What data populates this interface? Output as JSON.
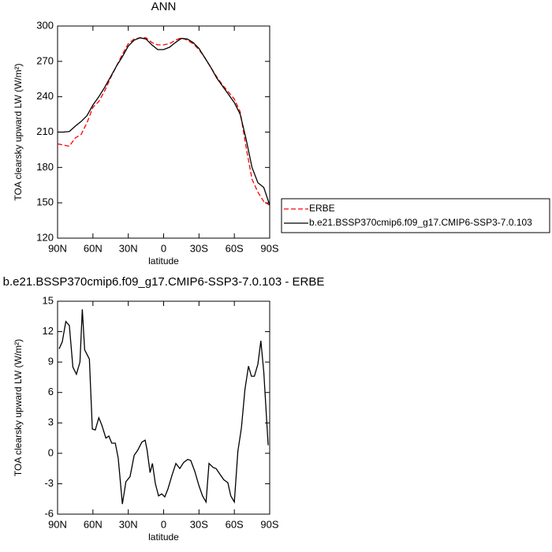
{
  "chart_data": [
    {
      "type": "line",
      "title": "ANN",
      "xlabel": "latitude",
      "ylabel": "TOA clearsky upward LW (W/m²)",
      "x": [
        90,
        85,
        80,
        75,
        70,
        65,
        60,
        55,
        50,
        45,
        40,
        35,
        30,
        25,
        20,
        15,
        10,
        5,
        0,
        -5,
        -10,
        -15,
        -20,
        -25,
        -30,
        -35,
        -40,
        -45,
        -50,
        -55,
        -60,
        -65,
        -70,
        -75,
        -80,
        -85,
        -90
      ],
      "series": [
        {
          "name": "ERBE",
          "color": "#ff0000",
          "style": "dashed",
          "values": [
            200,
            199,
            198,
            205,
            208,
            218,
            231,
            236,
            245,
            256,
            266,
            276,
            285,
            289,
            290,
            290,
            286,
            284,
            284,
            285,
            288,
            290,
            288,
            285,
            280,
            273,
            265,
            257,
            250,
            244,
            238,
            227,
            197,
            170,
            159,
            151,
            148
          ]
        },
        {
          "name": "b.e21.BSSP370cmip6.f09_g17.CMIP6-SSP3-7.0.103",
          "color": "#000000",
          "style": "solid",
          "values": [
            210,
            210,
            210.5,
            215,
            219,
            224,
            233,
            240,
            248,
            257,
            266,
            274,
            283,
            288,
            290,
            289,
            284,
            280,
            280,
            282,
            286,
            289.5,
            289,
            286,
            281,
            273,
            265,
            256,
            249,
            242,
            235,
            225,
            204,
            180,
            167,
            163,
            148
          ]
        }
      ],
      "xlim": [
        90,
        -90
      ],
      "xticks": [
        {
          "value": 90,
          "label": "90N"
        },
        {
          "value": 60,
          "label": "60N"
        },
        {
          "value": 30,
          "label": "30N"
        },
        0,
        {
          "value": -30,
          "label": "30S"
        },
        {
          "value": -60,
          "label": "60S"
        },
        {
          "value": -90,
          "label": "90S"
        }
      ],
      "ylim": [
        120,
        300
      ],
      "yticks": [
        120,
        150,
        180,
        210,
        240,
        270,
        300
      ],
      "legend": "right"
    },
    {
      "type": "line",
      "title": "b.e21.BSSP370cmip6.f09_g17.CMIP6-SSP3-7.0.103 - ERBE",
      "xlabel": "latitude",
      "ylabel": "TOA clearsky upward LW (W/m²)",
      "x": [
        88.7,
        86,
        83,
        80,
        77,
        74,
        71,
        69,
        67,
        63,
        60.5,
        58,
        55,
        52.5,
        49,
        46.5,
        44,
        41,
        38.5,
        35,
        32,
        28.5,
        25,
        22,
        18.5,
        15.7,
        14,
        11.5,
        9.5,
        7,
        4.3,
        1.6,
        -1,
        -3.7,
        -7,
        -10.4,
        -13.7,
        -17,
        -20.4,
        -23,
        -26.5,
        -30,
        -33,
        -36,
        -38.5,
        -42,
        -44.5,
        -48,
        -51,
        -54.5,
        -57,
        -60,
        -63,
        -66,
        -69,
        -72,
        -74.5,
        -77,
        -80,
        -82.5,
        -85,
        -88.7
      ],
      "series": [
        {
          "color": "#000000",
          "style": "solid",
          "values": [
            10.3,
            11,
            13,
            12.6,
            8.5,
            7.8,
            9,
            14.2,
            10.2,
            9.3,
            2.4,
            2.3,
            3.5,
            2.8,
            1.5,
            1.7,
            1.0,
            1.0,
            -0.5,
            -5.0,
            -2.8,
            -2.3,
            -0.2,
            0.3,
            1.1,
            1.3,
            0.3,
            -1.9,
            -1.0,
            -3.0,
            -4.2,
            -4.0,
            -4.3,
            -3.5,
            -2.2,
            -1.0,
            -1.5,
            -0.9,
            -0.6,
            -0.7,
            -1.8,
            -3.2,
            -4.2,
            -4.8,
            -1.0,
            -1.4,
            -1.5,
            -2.1,
            -2.6,
            -2.9,
            -4.2,
            -4.8,
            0.2,
            2.5,
            6.3,
            8.6,
            7.6,
            7.6,
            8.8,
            11.1,
            8.0,
            0.8
          ]
        }
      ],
      "xlim": [
        90,
        -90
      ],
      "xticks": [
        {
          "value": 90,
          "label": "90N"
        },
        {
          "value": 60,
          "label": "60N"
        },
        {
          "value": 30,
          "label": "30N"
        },
        0,
        {
          "value": -30,
          "label": "30S"
        },
        {
          "value": -60,
          "label": "60S"
        },
        {
          "value": -90,
          "label": "90S"
        }
      ],
      "ylim": [
        -6,
        15
      ],
      "yticks": [
        -6,
        -3,
        0,
        3,
        6,
        9,
        12,
        15
      ]
    }
  ]
}
